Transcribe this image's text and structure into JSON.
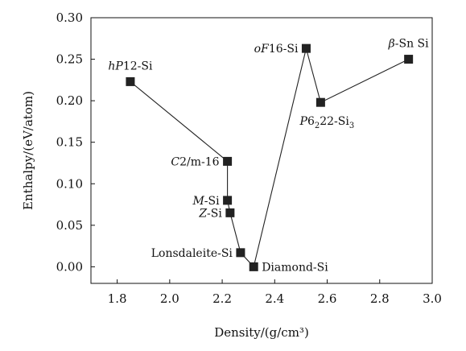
{
  "chart_data": {
    "type": "scatter",
    "xlabel": "Density/(g/cm³)",
    "ylabel": "Enthalpy/(eV/atom)",
    "xlim": [
      1.7,
      3.0
    ],
    "ylim": [
      -0.02,
      0.3
    ],
    "xticks": [
      1.8,
      2.0,
      2.2,
      2.4,
      2.6,
      2.8,
      3.0
    ],
    "xtick_labels": [
      "1.8",
      "2.0",
      "2.2",
      "2.4",
      "2.6",
      "2.8",
      "3.0"
    ],
    "yticks": [
      0.0,
      0.05,
      0.1,
      0.15,
      0.2,
      0.25,
      0.3
    ],
    "ytick_labels": [
      "0.00",
      "0.05",
      "0.10",
      "0.15",
      "0.20",
      "0.25",
      "0.30"
    ],
    "grid": false,
    "connected": true,
    "marker": "square",
    "color": "#222222",
    "points": [
      {
        "name": "hP12-Si",
        "label_parts": [
          {
            "t": "h",
            "i": true
          },
          {
            "t": "P",
            "i": true
          },
          {
            "t": "12-Si"
          }
        ],
        "x": 1.85,
        "y": 0.223,
        "label_side": "above"
      },
      {
        "name": "C2/m-16",
        "label_parts": [
          {
            "t": "C",
            "i": true
          },
          {
            "t": "2/m-16"
          }
        ],
        "x": 2.22,
        "y": 0.127,
        "label_side": "left"
      },
      {
        "name": "M-Si",
        "label_parts": [
          {
            "t": "M",
            "i": true
          },
          {
            "t": "-Si"
          }
        ],
        "x": 2.22,
        "y": 0.08,
        "label_side": "left"
      },
      {
        "name": "Z-Si",
        "label_parts": [
          {
            "t": "Z",
            "i": true
          },
          {
            "t": "-Si"
          }
        ],
        "x": 2.23,
        "y": 0.065,
        "label_side": "left"
      },
      {
        "name": "Lonsdaleite-Si",
        "label_parts": [
          {
            "t": "Lonsdaleite-Si"
          }
        ],
        "x": 2.27,
        "y": 0.017,
        "label_side": "left"
      },
      {
        "name": "Diamond-Si",
        "label_parts": [
          {
            "t": "Diamond-Si"
          }
        ],
        "x": 2.32,
        "y": 0.0,
        "label_side": "right"
      },
      {
        "name": "oF16-Si",
        "label_parts": [
          {
            "t": "o",
            "i": true
          },
          {
            "t": "F",
            "i": true
          },
          {
            "t": "16-Si"
          }
        ],
        "x": 2.52,
        "y": 0.263,
        "label_side": "left"
      },
      {
        "name": "P6222-Si3",
        "label_parts": [
          {
            "t": "P",
            "i": true
          },
          {
            "t": "6"
          },
          {
            "t": "2",
            "sub": true
          },
          {
            "t": "22-Si"
          },
          {
            "t": "3",
            "sub": true
          }
        ],
        "x": 2.575,
        "y": 0.198,
        "label_side": "below"
      },
      {
        "name": "β-Sn Si",
        "label_parts": [
          {
            "t": "β",
            "i": true
          },
          {
            "t": "-Sn Si"
          }
        ],
        "x": 2.91,
        "y": 0.25,
        "label_side": "above"
      }
    ]
  }
}
